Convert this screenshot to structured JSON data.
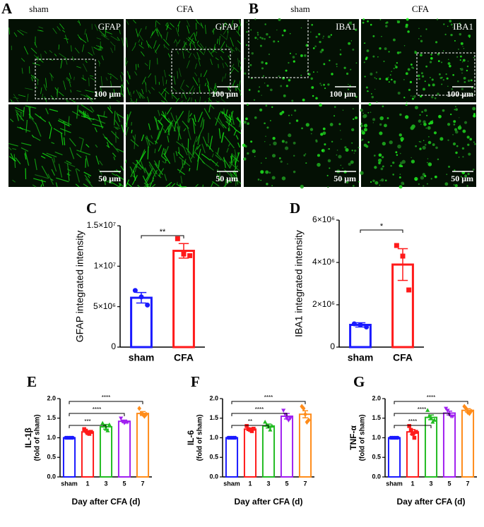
{
  "image_panels": [
    {
      "letter": "A",
      "columns": [
        "sham",
        "CFA"
      ],
      "marker": "GFAP",
      "scale_bars": [
        "100 μm",
        "50 μm"
      ]
    },
    {
      "letter": "B",
      "columns": [
        "sham",
        "CFA"
      ],
      "marker": "IBA1",
      "scale_bars": [
        "100 μm",
        "50 μm"
      ]
    }
  ],
  "chart_data": [
    {
      "type": "bar",
      "panel": "C",
      "y_label": "GFAP integrated intensity",
      "categories": [
        "sham",
        "CFA"
      ],
      "colors": [
        "#1a1aff",
        "#ff1a1a"
      ],
      "markers": [
        "circle",
        "square"
      ],
      "values": [
        6100000,
        11900000
      ],
      "errors": [
        650000,
        900000
      ],
      "points": [
        [
          7000000,
          6200000,
          5200000
        ],
        [
          13400000,
          11500000,
          11300000
        ]
      ],
      "ylim": [
        0,
        15000000
      ],
      "yticks": [
        0,
        {
          "value": 5000000,
          "label": "5×10⁶"
        },
        {
          "value": 10000000,
          "label": "1×10⁷"
        },
        {
          "value": 15000000,
          "label": "1.5×10⁷"
        }
      ],
      "annotations": [
        {
          "between": [
            "sham",
            "CFA"
          ],
          "label": "**"
        }
      ]
    },
    {
      "type": "bar",
      "panel": "D",
      "y_label": "IBA1 integrated intensity",
      "categories": [
        "sham",
        "CFA"
      ],
      "colors": [
        "#1a1aff",
        "#ff1a1a"
      ],
      "markers": [
        "circle",
        "square"
      ],
      "values": [
        1050000,
        3900000
      ],
      "errors": [
        100000,
        750000
      ],
      "points": [
        [
          1100000,
          1050000,
          950000
        ],
        [
          4800000,
          4300000,
          2700000
        ]
      ],
      "ylim": [
        0,
        6000000
      ],
      "yticks": [
        0,
        {
          "value": 2000000,
          "label": "2×10⁶"
        },
        {
          "value": 4000000,
          "label": "4×10⁶"
        },
        {
          "value": 6000000,
          "label": "6×10⁶"
        }
      ],
      "annotations": [
        {
          "between": [
            "sham",
            "CFA"
          ],
          "label": "*"
        }
      ]
    },
    {
      "type": "bar",
      "panel": "E",
      "y_label": [
        "IL-1β",
        "(fold of sham)"
      ],
      "x_label": "Day after CFA (d)",
      "categories": [
        "sham",
        "1",
        "3",
        "5",
        "7"
      ],
      "colors": [
        "#1a1aff",
        "#ff1a1a",
        "#22bb22",
        "#a020f0",
        "#ff8c1a"
      ],
      "markers": [
        "circle",
        "square",
        "triangle",
        "triangle-down",
        "diamond"
      ],
      "values": [
        1.0,
        1.15,
        1.28,
        1.42,
        1.62
      ],
      "errors": [
        0.01,
        0.03,
        0.06,
        0.03,
        0.05
      ],
      "points": [
        [
          1,
          1,
          1,
          1,
          1
        ],
        [
          1.22,
          1.18,
          1.12,
          1.1,
          1.15
        ],
        [
          1.37,
          1.3,
          1.22,
          1.18,
          1.33
        ],
        [
          1.5,
          1.42,
          1.38,
          1.4,
          1.4
        ],
        [
          1.75,
          1.62,
          1.6,
          1.55,
          1.6
        ]
      ],
      "ylim": [
        0,
        2.0
      ],
      "yticks": [
        {
          "value": 0,
          "label": "0.0"
        },
        0.5,
        {
          "value": 1,
          "label": "1.0"
        },
        1.5,
        {
          "value": 2,
          "label": "2.0"
        }
      ],
      "annotations": [
        {
          "between": [
            "sham",
            "3"
          ],
          "label": "***"
        },
        {
          "between": [
            "sham",
            "5"
          ],
          "label": "****"
        },
        {
          "between": [
            "sham",
            "7"
          ],
          "label": "****"
        }
      ]
    },
    {
      "type": "bar",
      "panel": "F",
      "y_label": [
        "IL-6",
        "(fold of sham)"
      ],
      "x_label": "Day after CFA (d)",
      "categories": [
        "sham",
        "1",
        "3",
        "5",
        "7"
      ],
      "colors": [
        "#1a1aff",
        "#ff1a1a",
        "#22bb22",
        "#a020f0",
        "#ff8c1a"
      ],
      "markers": [
        "circle",
        "square",
        "triangle",
        "triangle-down",
        "diamond"
      ],
      "values": [
        1.0,
        1.22,
        1.3,
        1.55,
        1.6
      ],
      "errors": [
        0.01,
        0.03,
        0.05,
        0.07,
        0.09
      ],
      "points": [
        [
          1,
          1,
          1,
          1,
          1
        ],
        [
          1.3,
          1.22,
          1.2,
          1.17,
          1.23
        ],
        [
          1.4,
          1.32,
          1.28,
          1.2,
          1.3
        ],
        [
          1.7,
          1.6,
          1.5,
          1.45,
          1.5
        ],
        [
          1.8,
          1.75,
          1.6,
          1.4,
          1.45
        ]
      ],
      "ylim": [
        0,
        2.0
      ],
      "yticks": [
        {
          "value": 0,
          "label": "0.0"
        },
        0.5,
        {
          "value": 1,
          "label": "1.0"
        },
        1.5,
        {
          "value": 2,
          "label": "2.0"
        }
      ],
      "annotations": [
        {
          "between": [
            "sham",
            "3"
          ],
          "label": "**"
        },
        {
          "between": [
            "sham",
            "5"
          ],
          "label": "****"
        },
        {
          "between": [
            "sham",
            "7"
          ],
          "label": "****"
        }
      ]
    },
    {
      "type": "bar",
      "panel": "G",
      "y_label": [
        "TNF-α",
        "(fold of sham)"
      ],
      "x_label": "Day after CFA (d)",
      "categories": [
        "sham",
        "1",
        "3",
        "5",
        "7"
      ],
      "colors": [
        "#1a1aff",
        "#ff1a1a",
        "#22bb22",
        "#a020f0",
        "#ff8c1a"
      ],
      "markers": [
        "circle",
        "square",
        "triangle",
        "triangle-down",
        "diamond"
      ],
      "values": [
        1.0,
        1.15,
        1.52,
        1.63,
        1.7
      ],
      "errors": [
        0.01,
        0.06,
        0.06,
        0.05,
        0.04
      ],
      "points": [
        [
          1,
          1,
          1,
          1,
          1
        ],
        [
          1.3,
          1.2,
          1.1,
          1.0,
          1.15
        ],
        [
          1.7,
          1.55,
          1.5,
          1.4,
          1.45
        ],
        [
          1.75,
          1.7,
          1.6,
          1.55,
          1.55
        ],
        [
          1.8,
          1.75,
          1.65,
          1.62,
          1.68
        ]
      ],
      "ylim": [
        0,
        2.0
      ],
      "yticks": [
        {
          "value": 0,
          "label": "0.0"
        },
        0.5,
        {
          "value": 1,
          "label": "1.0"
        },
        1.5,
        {
          "value": 2,
          "label": "2.0"
        }
      ],
      "annotations": [
        {
          "between": [
            "sham",
            "3"
          ],
          "label": "****"
        },
        {
          "between": [
            "sham",
            "5"
          ],
          "label": "****"
        },
        {
          "between": [
            "sham",
            "7"
          ],
          "label": "****"
        }
      ]
    }
  ]
}
